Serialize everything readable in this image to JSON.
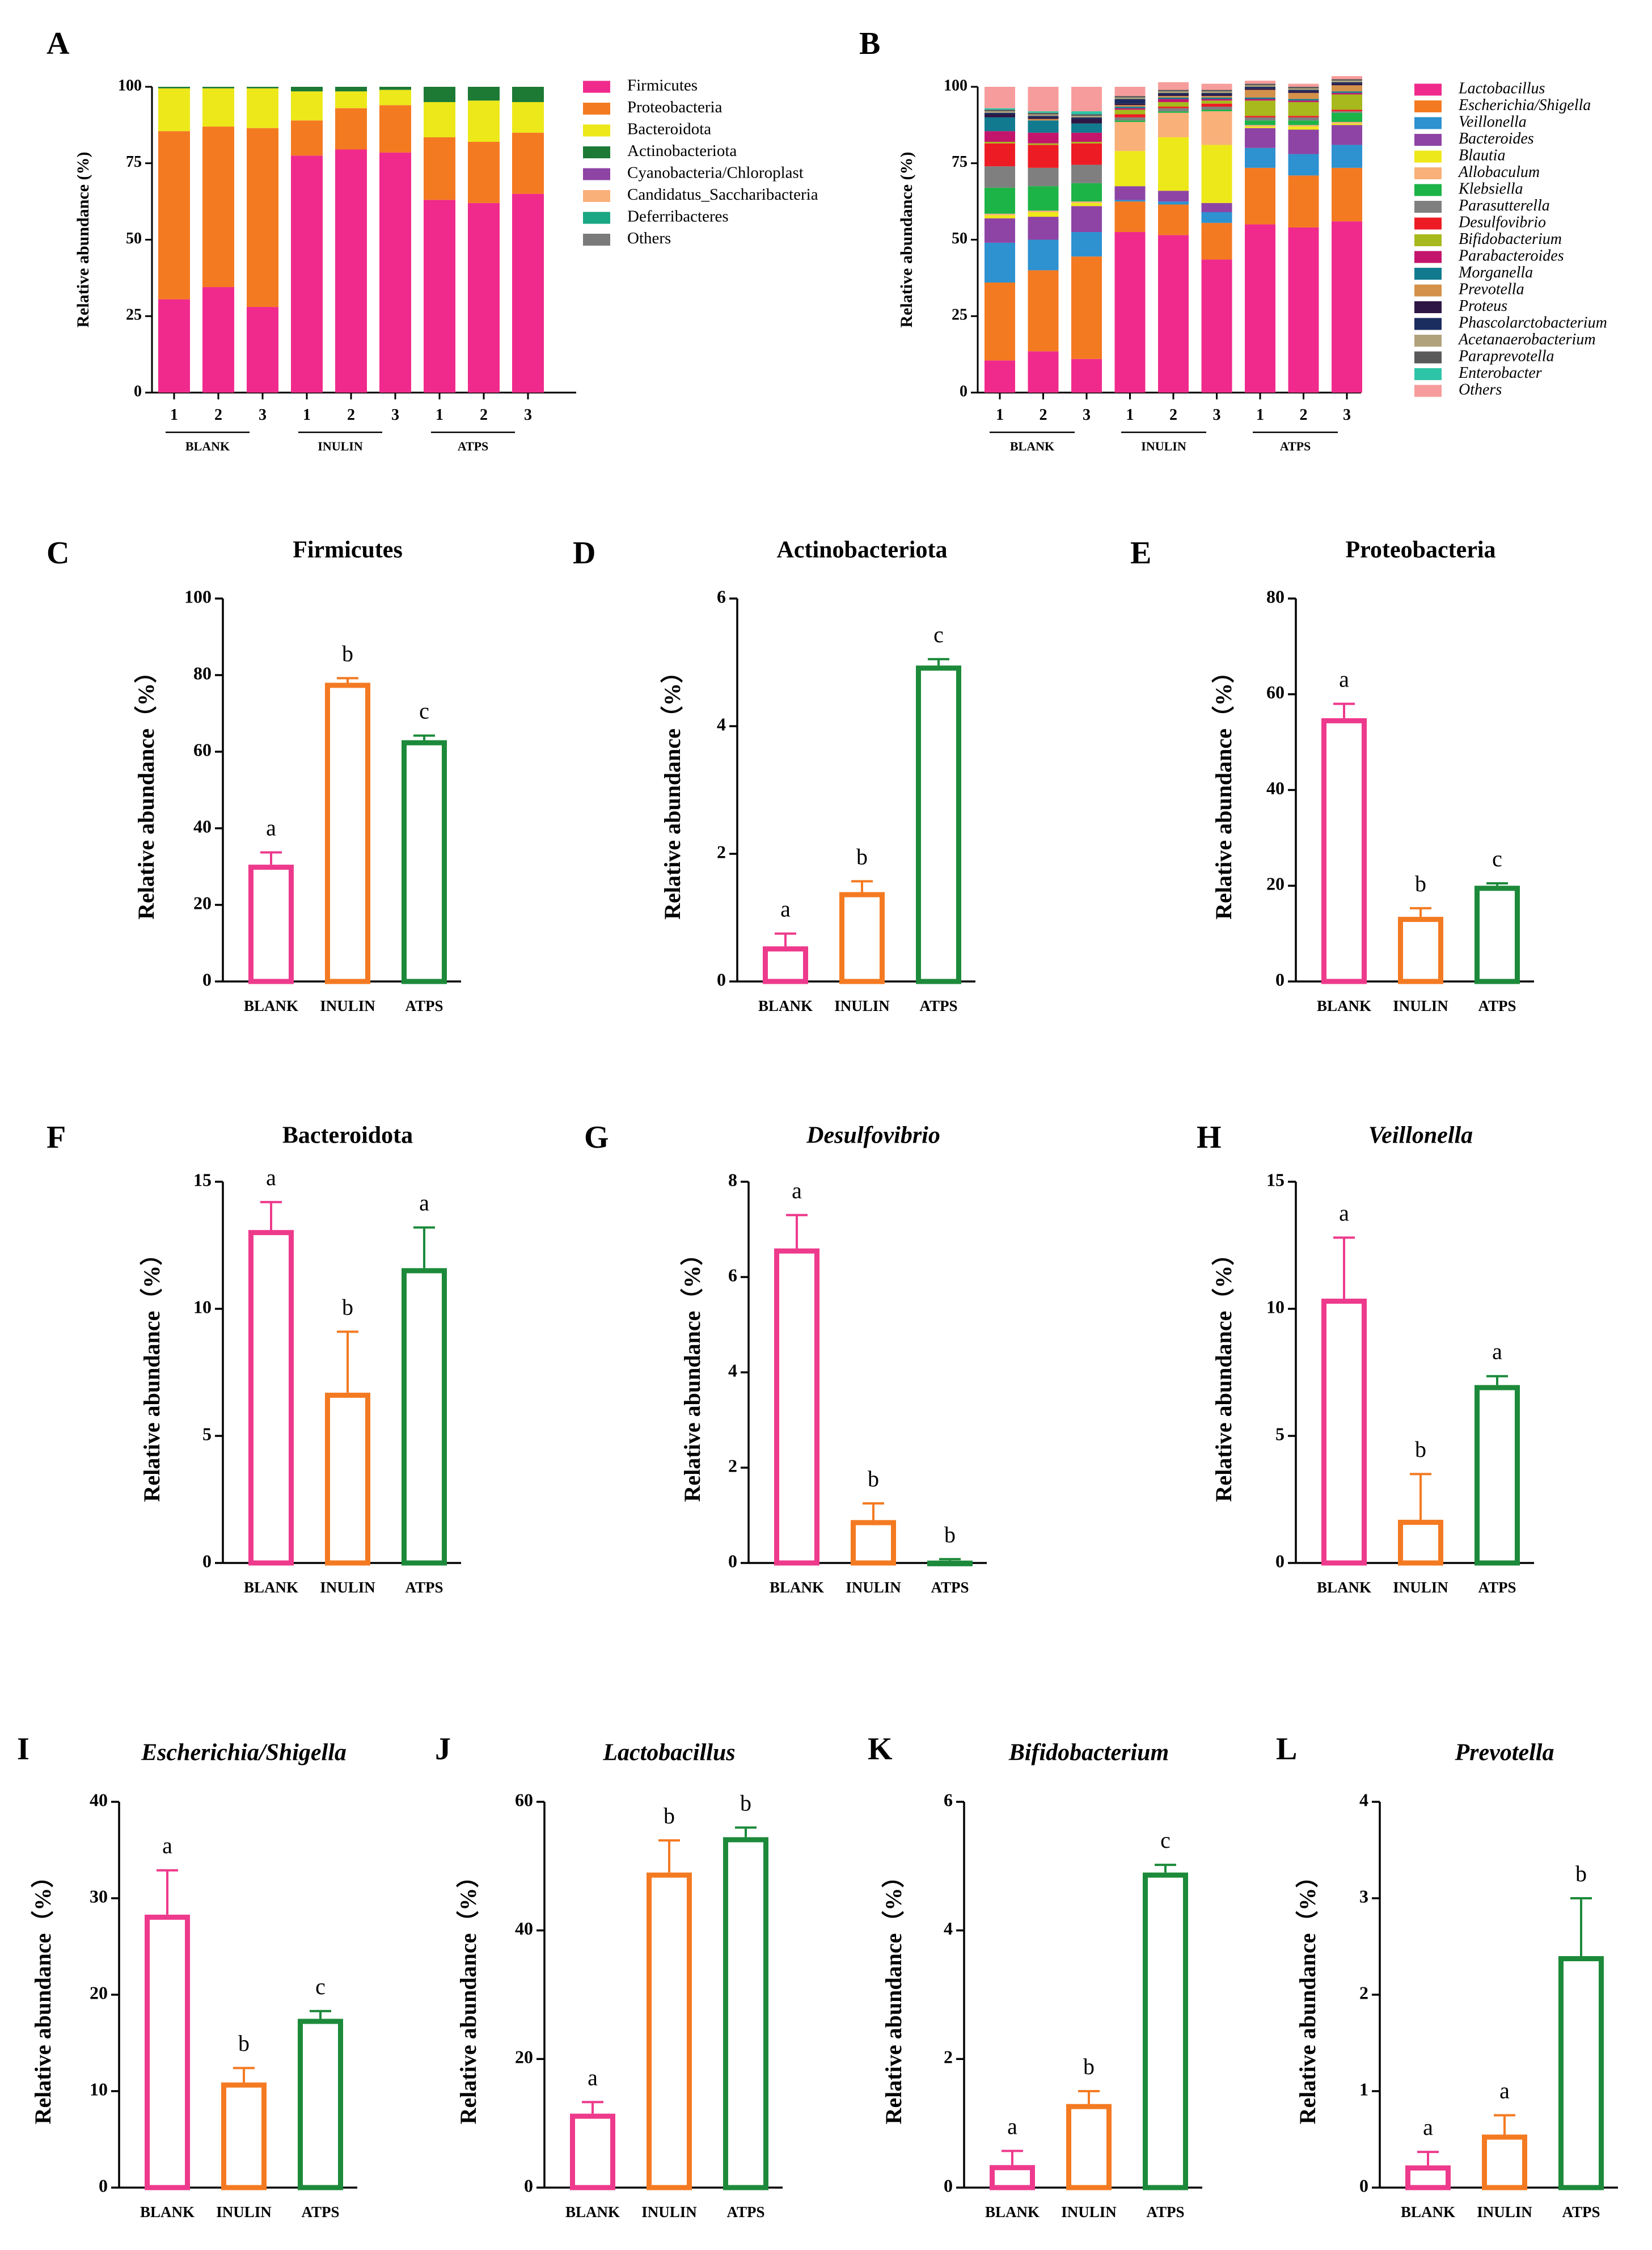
{
  "chart_data": [
    {
      "panel": "A",
      "type": "bar",
      "stacked": true,
      "title": "",
      "ylabel": "Relative abundance (%)",
      "ylim": [
        0,
        100
      ],
      "yticks": [
        "0",
        "25",
        "50",
        "75",
        "100"
      ],
      "categories": [
        "1",
        "2",
        "3",
        "1",
        "2",
        "3",
        "1",
        "2",
        "3"
      ],
      "groups": [
        "BLANK",
        "INULIN",
        "ATPS"
      ],
      "legend_position": "right",
      "series": [
        {
          "name": "Firmicutes",
          "color": "#F02A8C",
          "values": [
            30.5,
            34.5,
            28,
            77.5,
            79.5,
            78.5,
            63,
            62,
            65
          ]
        },
        {
          "name": "Proteobacteria",
          "color": "#F47A22",
          "values": [
            55,
            52.5,
            58.5,
            11.5,
            13.5,
            15.5,
            20.5,
            20,
            20
          ]
        },
        {
          "name": "Bacteroidota",
          "color": "#EDE81A",
          "values": [
            14,
            12.5,
            13,
            9.5,
            5.5,
            5,
            11.5,
            13.5,
            10
          ]
        },
        {
          "name": "Actinobacteriota",
          "color": "#1C7A35",
          "values": [
            0.5,
            0.5,
            0.5,
            1.5,
            1.5,
            1,
            5,
            4.5,
            5
          ]
        },
        {
          "name": "Cyanobacteria/Chloroplast",
          "color": "#8E44A4",
          "values": [
            0,
            0,
            0,
            0,
            0,
            0,
            0,
            0,
            0
          ]
        },
        {
          "name": "Candidatus_Saccharibacteria",
          "color": "#F9B079",
          "values": [
            0,
            0,
            0,
            0,
            0,
            0,
            0,
            0,
            0
          ]
        },
        {
          "name": "Deferribacteres",
          "color": "#19A883",
          "values": [
            0,
            0,
            0,
            0,
            0,
            0,
            0,
            0,
            0
          ]
        },
        {
          "name": "Others",
          "color": "#7A7A7A",
          "values": [
            0,
            0,
            0,
            0,
            0,
            0,
            0,
            0,
            0
          ]
        }
      ]
    },
    {
      "panel": "B",
      "type": "bar",
      "stacked": true,
      "title": "",
      "ylabel": "Relative abundance (%)",
      "ylim": [
        0,
        100
      ],
      "yticks": [
        "0",
        "25",
        "50",
        "75",
        "100"
      ],
      "categories": [
        "1",
        "2",
        "3",
        "1",
        "2",
        "3",
        "1",
        "2",
        "3"
      ],
      "groups": [
        "BLANK",
        "INULIN",
        "ATPS"
      ],
      "legend_position": "right",
      "series": [
        {
          "name": "Lactobacillus",
          "color": "#F02A8C",
          "values": [
            10.5,
            13.5,
            11,
            52.5,
            51.5,
            43.5,
            55,
            54,
            56
          ]
        },
        {
          "name": "Escherichia/Shigella",
          "color": "#F47A22",
          "values": [
            25.5,
            26.5,
            33.5,
            10,
            10,
            12,
            18.5,
            17,
            17.5
          ]
        },
        {
          "name": "Veillonella",
          "color": "#2E91D0",
          "values": [
            13,
            10,
            8,
            0.5,
            1,
            3.5,
            6.5,
            7,
            7.5
          ]
        },
        {
          "name": "Bacteroides",
          "color": "#8E44A4",
          "values": [
            8,
            7.5,
            8.5,
            4.5,
            3.5,
            3,
            6.5,
            8,
            6.5
          ]
        },
        {
          "name": "Blautia",
          "color": "#EDE81A",
          "values": [
            1,
            1.5,
            1,
            11.5,
            17.5,
            19,
            0.5,
            1,
            0.5
          ]
        },
        {
          "name": "Allobaculum",
          "color": "#F9B079",
          "values": [
            0.5,
            0.5,
            0.5,
            9.5,
            8,
            11,
            0.5,
            0.5,
            0.5
          ]
        },
        {
          "name": "Klebsiella",
          "color": "#1CB347",
          "values": [
            8.5,
            8,
            6,
            0.5,
            0.5,
            0.5,
            1.5,
            1.5,
            3
          ]
        },
        {
          "name": "Parasutterella",
          "color": "#7F7F7F",
          "values": [
            7,
            6,
            6,
            1,
            1,
            1,
            1,
            1,
            0.5
          ]
        },
        {
          "name": "Desulfovibrio",
          "color": "#ED1C24",
          "values": [
            7.5,
            7.5,
            7,
            1,
            0.5,
            1,
            0.5,
            0.5,
            0.5
          ]
        },
        {
          "name": "Bifidobacterium",
          "color": "#A7B91C",
          "values": [
            0.5,
            0.5,
            0.5,
            1.5,
            1.5,
            1,
            5,
            4.5,
            5
          ]
        },
        {
          "name": "Parabacteroides",
          "color": "#C4156C",
          "values": [
            3.5,
            3.5,
            3,
            0.5,
            1,
            0.5,
            0.5,
            0.5,
            0.5
          ]
        },
        {
          "name": "Morganella",
          "color": "#117A8F",
          "values": [
            4.5,
            4,
            3,
            0.5,
            0.5,
            0.5,
            0.5,
            0.5,
            0.5
          ]
        },
        {
          "name": "Prevotella",
          "color": "#D4914A",
          "values": [
            0,
            0.5,
            0,
            0.5,
            0.5,
            0.5,
            2.5,
            2,
            2
          ]
        },
        {
          "name": "Proteus",
          "color": "#2E1744",
          "values": [
            1,
            0.5,
            1.5,
            0.5,
            0.5,
            0.5,
            0.5,
            0.5,
            0.5
          ]
        },
        {
          "name": "Phascolarctobacterium",
          "color": "#1B2C5E",
          "values": [
            0.5,
            0.5,
            0.5,
            1.5,
            0.5,
            0.5,
            0.5,
            0.5,
            0.5
          ]
        },
        {
          "name": "Acetanaerobacterium",
          "color": "#B0A27A",
          "values": [
            0.5,
            0.5,
            0.5,
            0.5,
            0.5,
            0.5,
            0.5,
            0.5,
            0.5
          ]
        },
        {
          "name": "Paraprevotella",
          "color": "#595959",
          "values": [
            0.5,
            0.5,
            0.5,
            0.5,
            0.5,
            0.5,
            0.5,
            0.5,
            0.5
          ]
        },
        {
          "name": "Enterobacter",
          "color": "#2EC4A7",
          "values": [
            0.5,
            0.5,
            1,
            0,
            0,
            0,
            0,
            0,
            0
          ]
        },
        {
          "name": "Others",
          "color": "#F79C9C",
          "values": [
            7,
            8,
            8,
            3,
            2.5,
            2,
            1,
            1,
            1
          ]
        }
      ]
    },
    {
      "panel": "C",
      "type": "bar",
      "title": "Firmicutes",
      "title_italic": false,
      "ylabel": "Relative abundance（%）",
      "ylim": [
        0,
        100
      ],
      "yticks": [
        "0",
        "20",
        "40",
        "60",
        "80",
        "100"
      ],
      "categories": [
        "BLANK",
        "INULIN",
        "ATPS"
      ],
      "values": [
        30.5,
        78,
        63
      ],
      "errors": [
        3.2,
        1.2,
        1.2
      ],
      "letters": [
        "a",
        "b",
        "c"
      ]
    },
    {
      "panel": "D",
      "type": "bar",
      "title": "Actinobacteriota",
      "title_italic": false,
      "ylabel": "Relative abundance（%）",
      "ylim": [
        0,
        6
      ],
      "yticks": [
        "0",
        "2",
        "4",
        "6"
      ],
      "categories": [
        "BLANK",
        "INULIN",
        "ATPS"
      ],
      "values": [
        0.55,
        1.4,
        4.95
      ],
      "errors": [
        0.2,
        0.17,
        0.1
      ],
      "letters": [
        "a",
        "b",
        "c"
      ]
    },
    {
      "panel": "E",
      "type": "bar",
      "title": "Proteobacteria",
      "title_italic": false,
      "ylabel": "Relative abundance（%）",
      "ylim": [
        0,
        80
      ],
      "yticks": [
        "0",
        "20",
        "40",
        "60",
        "80"
      ],
      "categories": [
        "BLANK",
        "INULIN",
        "ATPS"
      ],
      "values": [
        55,
        13.5,
        20
      ],
      "errors": [
        3,
        1.8,
        0.5
      ],
      "letters": [
        "a",
        "b",
        "c"
      ]
    },
    {
      "panel": "F",
      "type": "bar",
      "title": "Bacteroidota",
      "title_italic": false,
      "ylabel": "Relative abundance（%）",
      "ylim": [
        0,
        15
      ],
      "yticks": [
        "0",
        "5",
        "10",
        "15"
      ],
      "categories": [
        "BLANK",
        "INULIN",
        "ATPS"
      ],
      "values": [
        13.1,
        6.7,
        11.6
      ],
      "errors": [
        1.1,
        2.4,
        1.6
      ],
      "letters": [
        "a",
        "b",
        "a"
      ]
    },
    {
      "panel": "G",
      "type": "bar",
      "title": "Desulfovibrio",
      "title_italic": true,
      "ylabel": "Relative abundance（%）",
      "ylim": [
        0,
        8
      ],
      "yticks": [
        "0",
        "2",
        "4",
        "6",
        "8"
      ],
      "categories": [
        "BLANK",
        "INULIN",
        "ATPS"
      ],
      "values": [
        6.6,
        0.9,
        0.05
      ],
      "errors": [
        0.7,
        0.35,
        0.03
      ],
      "letters": [
        "a",
        "b",
        "b"
      ]
    },
    {
      "panel": "H",
      "type": "bar",
      "title": "Veillonella",
      "title_italic": true,
      "ylabel": "Relative abundance（%）",
      "ylim": [
        0,
        15
      ],
      "yticks": [
        "0",
        "5",
        "10",
        "15"
      ],
      "categories": [
        "BLANK",
        "INULIN",
        "ATPS"
      ],
      "values": [
        10.4,
        1.7,
        7
      ],
      "errors": [
        2.4,
        1.8,
        0.35
      ],
      "letters": [
        "a",
        "b",
        "a"
      ]
    },
    {
      "panel": "I",
      "type": "bar",
      "title": "Escherichia/Shigella",
      "title_italic": true,
      "ylabel": "Relative abundance（%）",
      "ylim": [
        0,
        40
      ],
      "yticks": [
        "0",
        "10",
        "20",
        "30",
        "40"
      ],
      "categories": [
        "BLANK",
        "INULIN",
        "ATPS"
      ],
      "values": [
        28.3,
        10.9,
        17.5
      ],
      "errors": [
        4.6,
        1.5,
        0.8
      ],
      "letters": [
        "a",
        "b",
        "c"
      ]
    },
    {
      "panel": "J",
      "type": "bar",
      "title": "Lactobacillus",
      "title_italic": true,
      "ylabel": "Relative abundance（%）",
      "ylim": [
        0,
        60
      ],
      "yticks": [
        "0",
        "20",
        "40",
        "60"
      ],
      "categories": [
        "BLANK",
        "INULIN",
        "ATPS"
      ],
      "values": [
        11.5,
        49,
        54.5
      ],
      "errors": [
        1.8,
        5,
        1.5
      ],
      "letters": [
        "a",
        "b",
        "b"
      ]
    },
    {
      "panel": "K",
      "type": "bar",
      "title": "Bifidobacterium",
      "title_italic": true,
      "ylabel": "Relative abundance（%）",
      "ylim": [
        0,
        6
      ],
      "yticks": [
        "0",
        "2",
        "4",
        "6"
      ],
      "categories": [
        "BLANK",
        "INULIN",
        "ATPS"
      ],
      "values": [
        0.35,
        1.3,
        4.9
      ],
      "errors": [
        0.22,
        0.2,
        0.12
      ],
      "letters": [
        "a",
        "b",
        "c"
      ]
    },
    {
      "panel": "L",
      "type": "bar",
      "title": "Prevotella",
      "title_italic": true,
      "ylabel": "Relative abundance（%）",
      "ylim": [
        0,
        4
      ],
      "yticks": [
        "0",
        "1",
        "2",
        "3",
        "4"
      ],
      "categories": [
        "BLANK",
        "INULIN",
        "ATPS"
      ],
      "values": [
        0.23,
        0.55,
        2.4
      ],
      "errors": [
        0.14,
        0.2,
        0.6
      ],
      "letters": [
        "a",
        "a",
        "b"
      ]
    }
  ],
  "bar_colors": [
    "#EE3A8C",
    "#F47A22",
    "#1C8A3A"
  ]
}
